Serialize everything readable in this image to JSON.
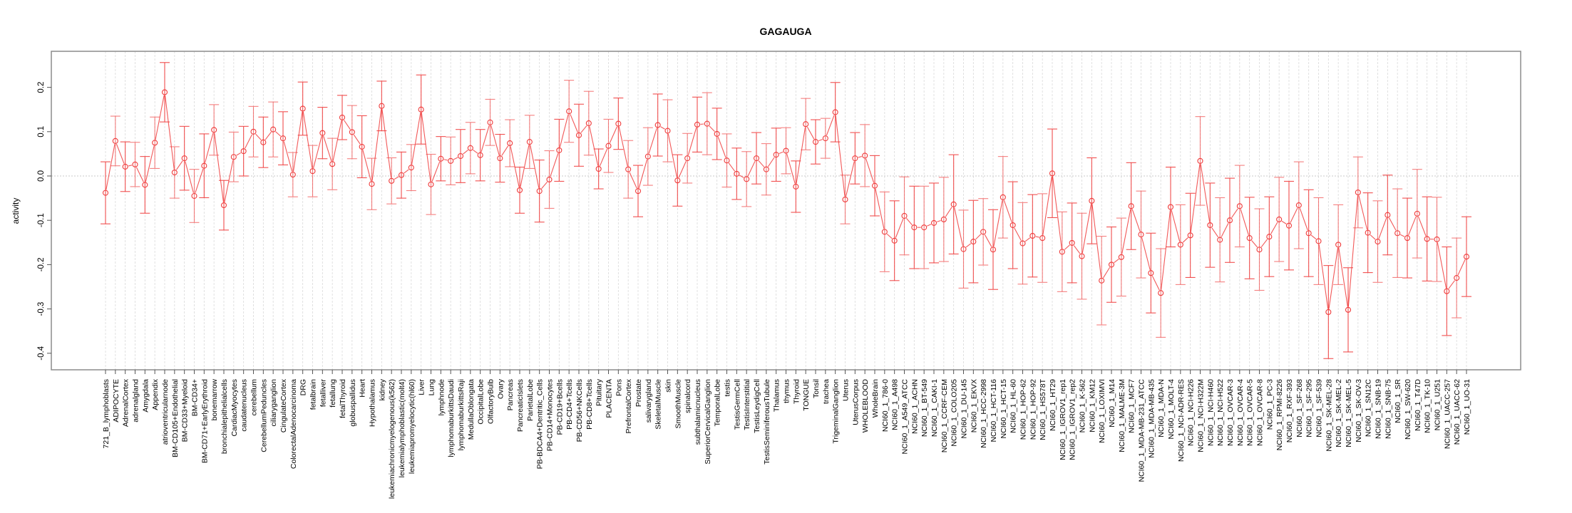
{
  "chart_data": {
    "type": "line",
    "title": "GAGAUGA",
    "xlabel": "",
    "ylabel": "activity",
    "ylim": [
      -0.43,
      0.28
    ],
    "yticks": [
      -0.4,
      -0.3,
      -0.2,
      -0.1,
      0.0,
      0.1,
      0.2
    ],
    "ytick_labels": [
      "-0.4",
      "-0.3",
      "-0.2",
      "-0.1",
      "0.0",
      "0.1",
      "0.2"
    ],
    "grid": "vertical dotted lines at each category; dotted horizontal line at 0",
    "legend": "none",
    "colors": {
      "series": "#f03c3c",
      "grid": "#d9d9d9",
      "frame": "#8c8c8c"
    },
    "categories": [
      "721_B_lymphoblasts",
      "ADIPOCYTE",
      "AdrenalCortex",
      "adrenalgland",
      "Amygdala",
      "Appendix",
      "atrioventricularnode",
      "BM-CD105+Endothelial",
      "BM-CD33+Myeloid",
      "BM-CD34+",
      "BM-CD71+EarlyErythroid",
      "bonemarrow",
      "bronchialepithelialcells",
      "CardiacMyocytes",
      "caudatenucleus",
      "cerebellum",
      "CerebellumPeduncles",
      "ciliaryganglion",
      "CingulateCortex",
      "ColorectalAdenocarcinoma",
      "DRG",
      "fetalbrain",
      "fetalliver",
      "fetallung",
      "fetalThyroid",
      "globuspallidus",
      "Heart",
      "Hypothalamus",
      "kidney",
      "leukemiachronicmyelogenous(k562)",
      "leukemialymphoblastic(molt4)",
      "leukemiapromyelocytic(hl60)",
      "Liver",
      "Lung",
      "lymphnode",
      "lymphomaburkittsDaudi",
      "lymphomaburkittsRaji",
      "MedullaOblongata",
      "OccipitalLobe",
      "OlfactoryBulb",
      "Ovary",
      "Pancreas",
      "PancreaticIslets",
      "ParietalLobe",
      "PB-BDCA4+Dentritic_Cells",
      "PB-CD14+Monocytes",
      "PB-CD19+Bcells",
      "PB-CD4+Tcells",
      "PB-CD56+NKCells",
      "PB-CD8+Tcells",
      "Pituitary",
      "PLACENTA",
      "Pons",
      "PrefrontalCortex",
      "Prostate",
      "salivarygland",
      "SkeletalMuscle",
      "skin",
      "SmoothMuscle",
      "spinalcord",
      "subthalamicnucleus",
      "SuperiorCervicalGanglion",
      "TemporalLobe",
      "testis",
      "TestisGermCell",
      "TestisInterstitial",
      "TestisLeydigCell",
      "TestisSeminiferousTubule",
      "Thalamus",
      "thymus",
      "Thyroid",
      "TONGUE",
      "Tonsil",
      "trachea",
      "TrigeminalGanglion",
      "Uterus",
      "UterusCorpus",
      "WHOLEBLOOD",
      "WholeBrain",
      "NCI60_1_786-0",
      "NCI60_1_A498",
      "NCI60_1_A549_ATCC",
      "NCI60_1_ACHN",
      "NCI60_1_BT-549",
      "NCI60_1_CAKI-1",
      "NCI60_1_CCRF-CEM",
      "NCI60_1_COLO205",
      "NCI60_1_DU-145",
      "NCI60_1_EKVX",
      "NCI60_1_HCC-2998",
      "NCI60_1_HCT-116",
      "NCI60_1_HCT-15",
      "NCI60_1_HL-60",
      "NCI60_1_HOP-62",
      "NCI60_1_HOP-92",
      "NCI60_1_HS578T",
      "NCI60_1_HT29",
      "NCI60_1_IGROV1_rep1",
      "NCI60_1_IGROV1_rep2",
      "NCI60_1_K-562",
      "NCI60_1_KM12",
      "NCI60_1_LOXIMVI",
      "NCI60_1_M14",
      "NCI60_1_MALME-3M",
      "NCI60_1_MCF7",
      "NCI60_1_MDA-MB-231_ATCC",
      "NCI60_1_MDA-MB-435",
      "NCI60_1_MDA-N",
      "NCI60_1_MOLT-4",
      "NCI60_1_NCI-ADR-RES",
      "NCI60_1_NCI-H226",
      "NCI60_1_NCI-H322M",
      "NCI60_1_NCI-H460",
      "NCI60_1_NCI-H522",
      "NCI60_1_OVCAR-3",
      "NCI60_1_OVCAR-4",
      "NCI60_1_OVCAR-5",
      "NCI60_1_OVCAR-8",
      "NCI60_1_PC-3",
      "NCI60_1_RPMI-8226",
      "NCI60_1_RXF-393",
      "NCI60_1_SF-268",
      "NCI60_1_SF-295",
      "NCI60_1_SF-539",
      "NCI60_1_SK-MEL-28",
      "NCI60_1_SK-MEL-2",
      "NCI60_1_SK-MEL-5",
      "NCI60_1_SK-OV-3",
      "NCI60_1_SN12C",
      "NCI60_1_SNB-19",
      "NCI60_1_SNB-75",
      "NCI60_1_SR",
      "NCI60_1_SW-620",
      "NCI60_1_T47D",
      "NCI60_1_TK-10",
      "NCI60_1_U251",
      "NCI60_1_UACC-257",
      "NCI60_1_UACC-62",
      "NCI60_1_UO-31"
    ],
    "series": [
      {
        "name": "activity",
        "values": [
          -0.038,
          0.079,
          0.021,
          0.026,
          -0.02,
          0.075,
          0.189,
          0.008,
          0.04,
          -0.045,
          0.023,
          0.104,
          -0.066,
          0.043,
          0.056,
          0.1,
          0.076,
          0.105,
          0.085,
          0.003,
          0.152,
          0.011,
          0.097,
          0.027,
          0.132,
          0.099,
          0.066,
          -0.018,
          0.158,
          -0.011,
          0.002,
          0.019,
          0.15,
          -0.019,
          0.039,
          0.034,
          0.045,
          0.063,
          0.047,
          0.121,
          0.04,
          0.074,
          -0.032,
          0.077,
          -0.034,
          -0.008,
          0.058,
          0.146,
          0.092,
          0.119,
          0.016,
          0.068,
          0.118,
          0.015,
          -0.034,
          0.044,
          0.115,
          0.102,
          -0.01,
          0.04,
          0.116,
          0.118,
          0.095,
          0.035,
          0.005,
          -0.007,
          0.04,
          0.015,
          0.048,
          0.057,
          -0.024,
          0.117,
          0.077,
          0.085,
          0.144,
          -0.053,
          0.04,
          0.046,
          -0.022,
          -0.126,
          -0.146,
          -0.09,
          -0.116,
          -0.116,
          -0.106,
          -0.098,
          -0.064,
          -0.165,
          -0.148,
          -0.126,
          -0.166,
          -0.048,
          -0.111,
          -0.152,
          -0.135,
          -0.14,
          0.006,
          -0.171,
          -0.151,
          -0.181,
          -0.056,
          -0.236,
          -0.2,
          -0.183,
          -0.068,
          -0.132,
          -0.219,
          -0.264,
          -0.07,
          -0.155,
          -0.134,
          0.034,
          -0.111,
          -0.144,
          -0.1,
          -0.068,
          -0.14,
          -0.166,
          -0.137,
          -0.098,
          -0.112,
          -0.066,
          -0.129,
          -0.147,
          -0.307,
          -0.155,
          -0.302,
          -0.037,
          -0.128,
          -0.148,
          -0.088,
          -0.129,
          -0.14,
          -0.085,
          -0.142,
          -0.143,
          -0.26,
          -0.23,
          -0.182
        ],
        "error_halfwidth": [
          0.07,
          0.056,
          0.056,
          0.05,
          0.064,
          0.058,
          0.067,
          0.058,
          0.072,
          0.06,
          0.072,
          0.057,
          0.056,
          0.056,
          0.056,
          0.057,
          0.057,
          0.062,
          0.06,
          0.05,
          0.06,
          0.058,
          0.058,
          0.058,
          0.05,
          0.06,
          0.07,
          0.058,
          0.056,
          0.052,
          0.052,
          0.052,
          0.078,
          0.068,
          0.05,
          0.054,
          0.06,
          0.058,
          0.058,
          0.052,
          0.054,
          0.053,
          0.052,
          0.06,
          0.07,
          0.065,
          0.07,
          0.07,
          0.07,
          0.072,
          0.045,
          0.06,
          0.058,
          0.065,
          0.058,
          0.065,
          0.07,
          0.07,
          0.058,
          0.056,
          0.062,
          0.07,
          0.058,
          0.06,
          0.058,
          0.062,
          0.058,
          0.058,
          0.06,
          0.052,
          0.058,
          0.058,
          0.05,
          0.045,
          0.067,
          0.055,
          0.058,
          0.07,
          0.068,
          0.09,
          0.09,
          0.088,
          0.093,
          0.093,
          0.09,
          0.095,
          0.112,
          0.088,
          0.093,
          0.075,
          0.09,
          0.092,
          0.098,
          0.092,
          0.093,
          0.1,
          0.1,
          0.09,
          0.09,
          0.097,
          0.097,
          0.1,
          0.085,
          0.088,
          0.098,
          0.098,
          0.09,
          0.1,
          0.09,
          0.09,
          0.095,
          0.1,
          0.095,
          0.095,
          0.095,
          0.092,
          0.092,
          0.092,
          0.09,
          0.095,
          0.1,
          0.098,
          0.098,
          0.098,
          0.105,
          0.09,
          0.095,
          0.08,
          0.09,
          0.092,
          0.09,
          0.1,
          0.09,
          0.1,
          0.095,
          0.095,
          0.1,
          0.09,
          0.09
        ]
      }
    ]
  }
}
